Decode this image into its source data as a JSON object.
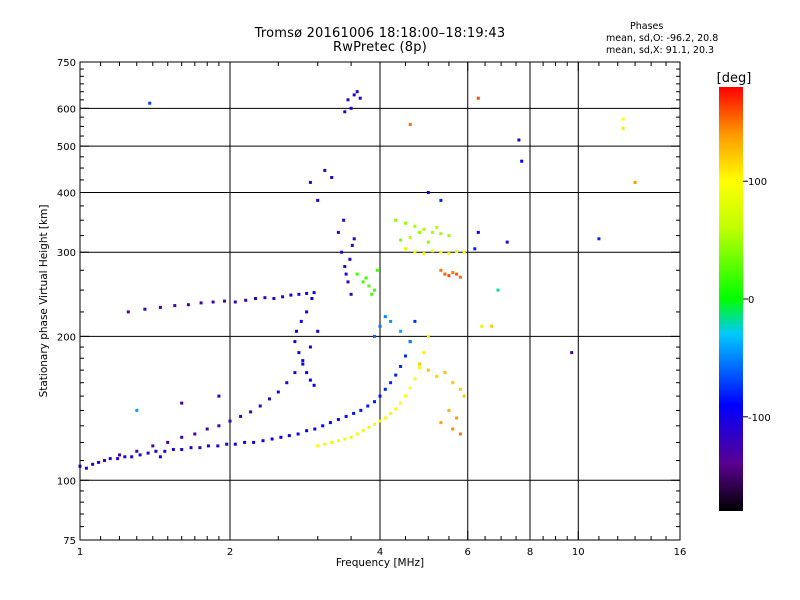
{
  "header": {
    "title_line1": "Tromsø 20161006 18:18:00–18:19:43",
    "title_line2": "RwPretec (8p)",
    "phases_title": "Phases",
    "phases_o": "mean, sd,O: -96.2, 20.8",
    "phases_x": "mean, sd,X:  91.1, 20.3"
  },
  "colorbar": {
    "unit_label": "[deg]",
    "ticks": [
      {
        "value": 100,
        "label": "100"
      },
      {
        "value": 0,
        "label": "0"
      },
      {
        "value": -100,
        "label": "-100"
      }
    ],
    "range": [
      -180,
      180
    ],
    "stops": [
      {
        "value": -180,
        "color": "#000000"
      },
      {
        "value": -140,
        "color": "#5a0090"
      },
      {
        "value": -90,
        "color": "#0000ff"
      },
      {
        "value": -30,
        "color": "#00c8ff"
      },
      {
        "value": 0,
        "color": "#00ff00"
      },
      {
        "value": 60,
        "color": "#c0ff00"
      },
      {
        "value": 100,
        "color": "#ffff00"
      },
      {
        "value": 140,
        "color": "#ff9900"
      },
      {
        "value": 180,
        "color": "#ff0000"
      }
    ]
  },
  "chart_data": {
    "type": "scatter",
    "title": "Tromsø 20161006 18:18:00–18:19:43 RwPretec (8p)",
    "xlabel": "Frequency [MHz]",
    "ylabel": "Stationary phase Virtual Height [km]",
    "x_scale": "log",
    "y_scale": "log",
    "xlim": [
      1,
      16
    ],
    "ylim": [
      75,
      750
    ],
    "grid": true,
    "x_major_ticks": [
      1,
      2,
      4,
      6,
      8,
      10,
      16
    ],
    "x_tick_labels": [
      "1",
      "2",
      "4",
      "6",
      "8",
      "10",
      "16"
    ],
    "x_grid": [
      2,
      4,
      6,
      8,
      10
    ],
    "y_major_ticks": [
      75,
      100,
      200,
      300,
      400,
      500,
      600,
      750
    ],
    "y_tick_labels": [
      "75",
      "100",
      "200",
      "300",
      "400",
      "500",
      "600",
      "750"
    ],
    "y_grid": [
      100,
      200,
      300,
      400,
      500,
      600
    ],
    "color_encodes": "phase [deg]",
    "series": [
      {
        "values": [
          [
            1.0,
            107,
            -110
          ],
          [
            1.03,
            106,
            -110
          ],
          [
            1.06,
            108,
            -112
          ],
          [
            1.09,
            109,
            -108
          ],
          [
            1.12,
            110,
            -110
          ],
          [
            1.15,
            111,
            -112
          ],
          [
            1.19,
            111,
            -110
          ],
          [
            1.23,
            112,
            -108
          ],
          [
            1.27,
            112,
            -110
          ],
          [
            1.32,
            113,
            -112
          ],
          [
            1.37,
            114,
            -110
          ],
          [
            1.42,
            115,
            -108
          ],
          [
            1.48,
            115,
            -110
          ],
          [
            1.54,
            116,
            -106
          ],
          [
            1.6,
            116,
            -108
          ],
          [
            1.67,
            117,
            -104
          ],
          [
            1.74,
            117,
            -106
          ],
          [
            1.81,
            118,
            -102
          ],
          [
            1.89,
            118,
            -104
          ],
          [
            1.97,
            119,
            -100
          ],
          [
            2.05,
            119,
            -98
          ],
          [
            2.14,
            120,
            -98
          ],
          [
            2.23,
            120,
            -96
          ],
          [
            2.33,
            121,
            -96
          ],
          [
            2.43,
            122,
            -94
          ],
          [
            2.53,
            123,
            -94
          ],
          [
            2.63,
            124,
            -92
          ],
          [
            2.74,
            125,
            -92
          ],
          [
            2.85,
            127,
            -90
          ],
          [
            2.96,
            128,
            -90
          ],
          [
            3.07,
            130,
            -88
          ],
          [
            3.18,
            132,
            -88
          ],
          [
            3.3,
            134,
            -86
          ],
          [
            3.42,
            136,
            -86
          ],
          [
            3.54,
            138,
            -85
          ],
          [
            3.66,
            140,
            -84
          ],
          [
            3.78,
            143,
            -84
          ],
          [
            3.9,
            146,
            -82
          ],
          [
            4.0,
            150,
            -82
          ],
          [
            4.1,
            155,
            -80
          ],
          [
            4.2,
            160,
            -80
          ],
          [
            4.3,
            166,
            -80
          ],
          [
            4.4,
            173,
            -78
          ],
          [
            4.5,
            182,
            -78
          ],
          [
            4.6,
            195,
            -76
          ],
          [
            4.7,
            215,
            -76
          ]
        ]
      },
      {
        "values": [
          [
            3.0,
            118,
            90
          ],
          [
            3.1,
            119,
            90
          ],
          [
            3.2,
            120,
            92
          ],
          [
            3.3,
            121,
            90
          ],
          [
            3.4,
            122,
            92
          ],
          [
            3.5,
            123,
            90
          ],
          [
            3.6,
            125,
            92
          ],
          [
            3.7,
            127,
            90
          ],
          [
            3.8,
            129,
            94
          ],
          [
            3.9,
            131,
            92
          ],
          [
            4.0,
            133,
            94
          ],
          [
            4.1,
            135,
            92
          ],
          [
            4.2,
            138,
            94
          ],
          [
            4.3,
            141,
            96
          ],
          [
            4.4,
            145,
            96
          ],
          [
            4.5,
            150,
            98
          ],
          [
            4.6,
            156,
            100
          ],
          [
            4.7,
            163,
            100
          ],
          [
            4.8,
            172,
            102
          ],
          [
            4.9,
            185,
            104
          ],
          [
            5.0,
            200,
            106
          ]
        ]
      },
      {
        "values": [
          [
            1.12,
            110,
            -130
          ],
          [
            1.2,
            113,
            -128
          ],
          [
            1.3,
            115,
            -130
          ],
          [
            1.4,
            118,
            -128
          ],
          [
            1.5,
            120,
            -130
          ],
          [
            1.6,
            123,
            -128
          ],
          [
            1.7,
            125,
            -130
          ],
          [
            1.8,
            128,
            -126
          ],
          [
            1.9,
            130,
            -128
          ],
          [
            2.0,
            133,
            -120
          ],
          [
            2.1,
            136,
            -118
          ],
          [
            2.2,
            139,
            -116
          ],
          [
            2.3,
            143,
            -114
          ],
          [
            2.4,
            148,
            -112
          ],
          [
            2.5,
            153,
            -110
          ],
          [
            2.6,
            160,
            -108
          ],
          [
            2.7,
            168,
            -106
          ],
          [
            2.8,
            178,
            -104
          ],
          [
            2.9,
            190,
            -102
          ],
          [
            3.0,
            205,
            -100
          ]
        ]
      },
      {
        "values": [
          [
            1.25,
            225,
            -130
          ],
          [
            1.35,
            228,
            -128
          ],
          [
            1.45,
            230,
            -130
          ],
          [
            1.55,
            232,
            -128
          ],
          [
            1.65,
            233,
            -130
          ],
          [
            1.75,
            235,
            -128
          ],
          [
            1.85,
            236,
            -126
          ],
          [
            1.95,
            237,
            -124
          ],
          [
            2.05,
            236,
            -122
          ],
          [
            2.15,
            238,
            -120
          ],
          [
            2.25,
            240,
            -118
          ],
          [
            2.35,
            241,
            -116
          ],
          [
            2.45,
            240,
            -114
          ],
          [
            2.55,
            242,
            -112
          ],
          [
            2.65,
            244,
            -110
          ],
          [
            2.75,
            245,
            -108
          ],
          [
            2.85,
            246,
            -106
          ],
          [
            2.95,
            247,
            -104
          ]
        ]
      },
      {
        "values": [
          [
            3.3,
            330,
            -120
          ],
          [
            3.35,
            300,
            -118
          ],
          [
            3.4,
            280,
            -120
          ],
          [
            3.45,
            260,
            -116
          ],
          [
            3.5,
            245,
            -118
          ],
          [
            3.55,
            320,
            -114
          ],
          [
            3.38,
            350,
            -116
          ],
          [
            3.48,
            290,
            -118
          ],
          [
            3.42,
            270,
            -120
          ],
          [
            3.52,
            310,
            -114
          ]
        ]
      },
      {
        "values": [
          [
            3.45,
            625,
            -110
          ],
          [
            3.55,
            640,
            -108
          ],
          [
            3.5,
            600,
            -112
          ],
          [
            3.6,
            650,
            -106
          ],
          [
            3.65,
            630,
            -110
          ],
          [
            3.4,
            590,
            -112
          ]
        ]
      },
      {
        "values": [
          [
            3.6,
            270,
            20
          ],
          [
            3.7,
            260,
            22
          ],
          [
            3.8,
            255,
            25
          ],
          [
            3.9,
            250,
            20
          ],
          [
            3.75,
            265,
            18
          ],
          [
            3.85,
            245,
            24
          ],
          [
            3.95,
            275,
            22
          ]
        ]
      },
      {
        "values": [
          [
            4.3,
            350,
            40
          ],
          [
            4.5,
            345,
            45
          ],
          [
            4.7,
            340,
            50
          ],
          [
            4.9,
            335,
            55
          ],
          [
            5.1,
            330,
            52
          ],
          [
            5.3,
            328,
            48
          ],
          [
            5.5,
            325,
            50
          ],
          [
            4.4,
            318,
            38
          ],
          [
            4.6,
            322,
            60
          ],
          [
            5.0,
            315,
            42
          ],
          [
            5.2,
            338,
            56
          ],
          [
            4.8,
            330,
            45
          ]
        ]
      },
      {
        "values": [
          [
            4.5,
            305,
            80
          ],
          [
            4.7,
            300,
            85
          ],
          [
            4.9,
            298,
            90
          ],
          [
            5.1,
            302,
            95
          ],
          [
            5.3,
            300,
            100
          ],
          [
            5.5,
            298,
            95
          ],
          [
            5.7,
            301,
            90
          ],
          [
            5.9,
            300,
            85
          ]
        ]
      },
      {
        "values": [
          [
            5.3,
            275,
            150
          ],
          [
            5.4,
            270,
            155
          ],
          [
            5.5,
            268,
            160
          ],
          [
            5.6,
            272,
            150
          ],
          [
            5.7,
            270,
            158
          ],
          [
            5.8,
            266,
            152
          ]
        ]
      },
      {
        "values": [
          [
            4.8,
            175,
            120
          ],
          [
            5.0,
            170,
            125
          ],
          [
            5.2,
            165,
            120
          ],
          [
            5.4,
            168,
            125
          ],
          [
            5.6,
            160,
            122
          ],
          [
            5.8,
            155,
            118
          ],
          [
            5.9,
            150,
            120
          ],
          [
            5.5,
            140,
            130
          ],
          [
            5.7,
            135,
            140
          ],
          [
            5.3,
            132,
            135
          ],
          [
            5.6,
            128,
            145
          ],
          [
            5.8,
            125,
            150
          ]
        ]
      },
      {
        "values": [
          [
            2.7,
            195,
            -100
          ],
          [
            2.75,
            185,
            -98
          ],
          [
            2.8,
            175,
            -96
          ],
          [
            2.85,
            168,
            -95
          ],
          [
            2.9,
            162,
            -94
          ],
          [
            2.95,
            158,
            -93
          ],
          [
            2.72,
            205,
            -98
          ],
          [
            2.78,
            215,
            -96
          ],
          [
            2.85,
            225,
            -95
          ],
          [
            2.92,
            240,
            -94
          ]
        ]
      },
      {
        "values": [
          [
            3.9,
            200,
            -60
          ],
          [
            4.0,
            210,
            -55
          ],
          [
            4.1,
            220,
            -50
          ],
          [
            4.2,
            215,
            -45
          ],
          [
            4.4,
            205,
            -40
          ],
          [
            4.6,
            195,
            -50
          ]
        ]
      },
      {
        "values": [
          [
            1.38,
            615,
            -70
          ],
          [
            4.6,
            555,
            150
          ],
          [
            6.3,
            630,
            160
          ],
          [
            7.6,
            515,
            -100
          ],
          [
            7.7,
            465,
            -90
          ],
          [
            9.7,
            185,
            -130
          ],
          [
            11.0,
            320,
            -80
          ],
          [
            12.3,
            570,
            100
          ],
          [
            12.3,
            545,
            110
          ],
          [
            13.0,
            420,
            140
          ],
          [
            2.9,
            420,
            -110
          ],
          [
            3.1,
            445,
            -115
          ],
          [
            3.2,
            430,
            -110
          ],
          [
            3.0,
            385,
            -100
          ],
          [
            6.7,
            210,
            120
          ],
          [
            6.9,
            250,
            -20
          ],
          [
            7.2,
            315,
            -110
          ],
          [
            6.4,
            210,
            80
          ],
          [
            1.6,
            145,
            -120
          ],
          [
            1.9,
            150,
            -110
          ],
          [
            1.3,
            140,
            -40
          ],
          [
            1.45,
            112,
            -100
          ],
          [
            5.0,
            400,
            -90
          ],
          [
            5.3,
            385,
            -80
          ],
          [
            6.2,
            305,
            -80
          ],
          [
            6.3,
            330,
            -100
          ]
        ]
      }
    ]
  }
}
